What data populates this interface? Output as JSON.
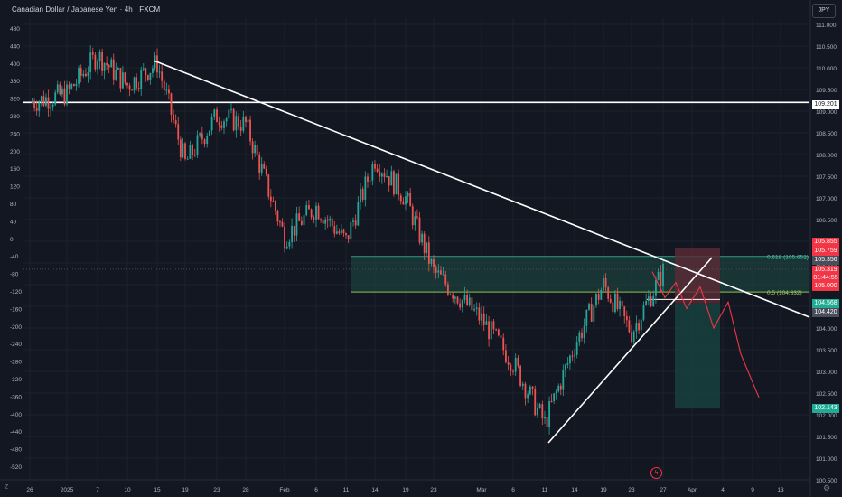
{
  "header": {
    "title": "Canadian Dollar / Japanese Yen · 4h · FXCM",
    "currency_label": "JPY"
  },
  "colors": {
    "background": "#131722",
    "up": "#26a69a",
    "down": "#ef5350",
    "trendline": "#ffffff",
    "zone_fill": "#1e4d45",
    "zone_border": "#2f9e8a",
    "fib_0618_line": "#2f9e8a",
    "fib_05_line": "#8bc34a",
    "stop_box": "#5b2a36",
    "target_box": "#17403d",
    "projection": "#f23645"
  },
  "chart_data": {
    "type": "candlestick",
    "symbol": "CAD/JPY",
    "timeframe": "4h",
    "source": "FXCM",
    "left_axis_ticks": [
      480,
      440,
      400,
      360,
      320,
      280,
      240,
      200,
      160,
      120,
      80,
      40,
      0,
      -40,
      -80,
      -120,
      -160,
      -200,
      -240,
      -280,
      -320,
      -360,
      -400,
      -440,
      -480,
      -520
    ],
    "right_axis_ticks": [
      "111.000",
      "110.500",
      "110.000",
      "109.500",
      "109.000",
      "108.500",
      "108.000",
      "107.500",
      "107.000",
      "106.500",
      "106.000",
      "105.500",
      "105.000",
      "104.500",
      "104.000",
      "103.500",
      "103.000",
      "102.500",
      "102.000",
      "101.500",
      "101.000",
      "100.500"
    ],
    "x_ticks": [
      "26",
      "2025",
      "7",
      "10",
      "15",
      "19",
      "23",
      "28",
      "Feb",
      "6",
      "11",
      "14",
      "19",
      "23",
      "Mar",
      "6",
      "11",
      "14",
      "19",
      "23",
      "27",
      "Apr",
      "4",
      "9",
      "13"
    ],
    "ylim": [
      100.5,
      111.0
    ],
    "price_tags": [
      {
        "label": "109.201",
        "style": "white"
      },
      {
        "label": "105.855",
        "style": "red"
      },
      {
        "label": "105.759",
        "style": "red"
      },
      {
        "label": "105.356",
        "style": "gray"
      },
      {
        "label": "105.319",
        "style": "red"
      },
      {
        "label": "01:44:55",
        "style": "red"
      },
      {
        "label": "105.000",
        "style": "red"
      },
      {
        "label": "104.568",
        "style": "teal"
      },
      {
        "label": "104.420",
        "style": "gray"
      },
      {
        "label": "102.143",
        "style": "teal"
      }
    ],
    "annotations": [
      {
        "label": "0.618 (105.652)",
        "price": 105.652
      },
      {
        "label": "0.5 (104.832)",
        "price": 104.832
      }
    ],
    "horizontal_line": 109.201,
    "price_series": [
      [
        "26",
        109.2
      ],
      [
        "2025",
        109.4
      ],
      [
        "7",
        110.3
      ],
      [
        "10",
        109.6
      ],
      [
        "15",
        110.1
      ],
      [
        "19",
        107.8
      ],
      [
        "23",
        108.9
      ],
      [
        "28",
        108.7
      ],
      [
        "Feb",
        106.1
      ],
      [
        "6",
        106.8
      ],
      [
        "11",
        106.0
      ],
      [
        "14",
        107.9
      ],
      [
        "19",
        107.0
      ],
      [
        "23",
        105.3
      ],
      [
        "Mar",
        104.2
      ],
      [
        "6",
        103.2
      ],
      [
        "11",
        101.8
      ],
      [
        "14",
        103.6
      ],
      [
        "19",
        105.0
      ],
      [
        "23",
        103.9
      ],
      [
        "27",
        105.3
      ]
    ],
    "projection_path": [
      105.3,
      104.7,
      105.05,
      104.45,
      104.95,
      104.0,
      104.6,
      103.4,
      102.4
    ]
  }
}
